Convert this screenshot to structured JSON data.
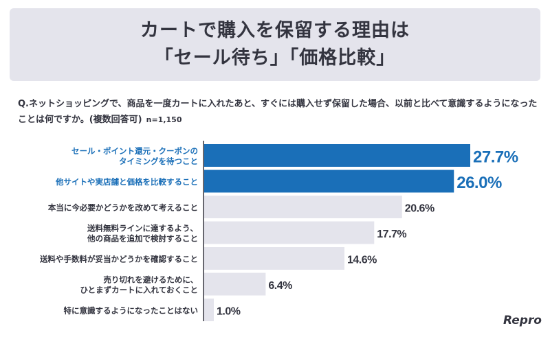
{
  "title": {
    "line1": "カートで購入を保留する理由は",
    "line2": "「セール待ち」「価格比較」"
  },
  "question": "Q.ネットショッピングで、商品を一度カートに入れたあと、すぐには購入せず保留した場合、以前と比べて意識するようになったことは何ですか。(複数回答可)",
  "sample_size": "n=1,150",
  "logo": "Repro",
  "chart_data": {
    "type": "bar",
    "orientation": "horizontal",
    "categories": [
      [
        "セール・ポイント還元・クーポンの",
        "タイミングを待つこと"
      ],
      [
        "他サイトや実店舗と価格を比較すること"
      ],
      [
        "本当に今必要かどうかを改めて考えること"
      ],
      [
        "送料無料ラインに達するよう、",
        "他の商品を追加で検討すること"
      ],
      [
        "送料や手数料が妥当かどうかを確認すること"
      ],
      [
        "売り切れを避けるために、",
        "ひとまずカートに入れておくこと"
      ],
      [
        "特に意識するようになったことはない"
      ]
    ],
    "values": [
      27.7,
      26.0,
      20.6,
      17.7,
      14.6,
      6.4,
      1.0
    ],
    "labels": [
      "27.7%",
      "26.0%",
      "20.6%",
      "17.7%",
      "14.6%",
      "6.4%",
      "1.0%"
    ],
    "highlighted": [
      true,
      true,
      false,
      false,
      false,
      false,
      false
    ],
    "colors": {
      "highlight": "#1a6fb8",
      "normal": "#e4e4ec",
      "label_normal": "#33343f"
    },
    "xlim": [
      0,
      30
    ]
  }
}
